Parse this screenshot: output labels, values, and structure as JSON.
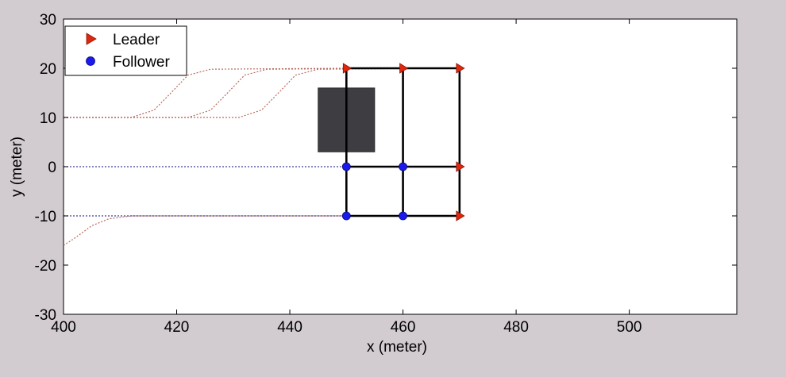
{
  "chart_data": {
    "type": "scatter",
    "title": "",
    "xlabel": "x (meter)",
    "ylabel": "y (meter)",
    "xlim": [
      400,
      519
    ],
    "ylim": [
      -30,
      30
    ],
    "grid": false,
    "legend_position": "top-left",
    "xticks": [
      400,
      420,
      440,
      460,
      480,
      500
    ],
    "yticks": [
      -30,
      -20,
      -10,
      0,
      10,
      20,
      30
    ],
    "colors": {
      "leader": "#e0260c",
      "follower": "#1a1aee",
      "formation_link": "#000000",
      "obstacle": "#3e3e42",
      "leader_trail": "#b86a5e",
      "follower_trail": "#3c3c9c",
      "background": "#d2cbd0",
      "axes": "#ffffff"
    },
    "series": [
      {
        "name": "Leader",
        "marker": "triangle-right",
        "points": [
          [
            450,
            20
          ],
          [
            460,
            20
          ],
          [
            470,
            20
          ],
          [
            470,
            0
          ],
          [
            470,
            -10
          ]
        ]
      },
      {
        "name": "Follower",
        "marker": "circle",
        "points": [
          [
            450,
            0
          ],
          [
            460,
            0
          ],
          [
            450,
            -10
          ],
          [
            460,
            -10
          ]
        ]
      }
    ],
    "formation_links": [
      [
        [
          450,
          20
        ],
        [
          470,
          20
        ]
      ],
      [
        [
          450,
          0
        ],
        [
          470,
          0
        ]
      ],
      [
        [
          450,
          -10
        ],
        [
          470,
          -10
        ]
      ],
      [
        [
          450,
          20
        ],
        [
          450,
          -10
        ]
      ],
      [
        [
          460,
          20
        ],
        [
          460,
          -10
        ]
      ],
      [
        [
          470,
          20
        ],
        [
          470,
          -10
        ]
      ]
    ],
    "obstacle": {
      "x0": 445,
      "x1": 455,
      "y0": 3,
      "y1": 16
    },
    "trajectories": [
      {
        "kind": "leader",
        "points": [
          [
            400,
            10
          ],
          [
            412,
            10
          ],
          [
            416,
            11.5
          ],
          [
            419,
            15
          ],
          [
            422,
            18.6
          ],
          [
            426,
            19.8
          ],
          [
            450,
            20
          ]
        ]
      },
      {
        "kind": "leader",
        "points": [
          [
            400,
            10
          ],
          [
            422,
            10
          ],
          [
            426,
            11.5
          ],
          [
            429,
            15
          ],
          [
            432,
            18.6
          ],
          [
            436,
            19.8
          ],
          [
            460,
            20
          ]
        ]
      },
      {
        "kind": "leader",
        "points": [
          [
            400,
            10
          ],
          [
            431,
            10
          ],
          [
            435,
            11.5
          ],
          [
            438,
            15
          ],
          [
            441,
            18.6
          ],
          [
            445,
            19.8
          ],
          [
            470,
            20
          ]
        ]
      },
      {
        "kind": "follower",
        "points": [
          [
            400,
            0
          ],
          [
            470,
            0
          ]
        ]
      },
      {
        "kind": "follower",
        "points": [
          [
            400,
            -10
          ],
          [
            470,
            -10
          ]
        ]
      },
      {
        "kind": "leader",
        "points": [
          [
            400,
            -16
          ],
          [
            402,
            -14.5
          ],
          [
            405,
            -12
          ],
          [
            408,
            -10.6
          ],
          [
            412,
            -10
          ],
          [
            470,
            -10
          ]
        ]
      }
    ]
  }
}
